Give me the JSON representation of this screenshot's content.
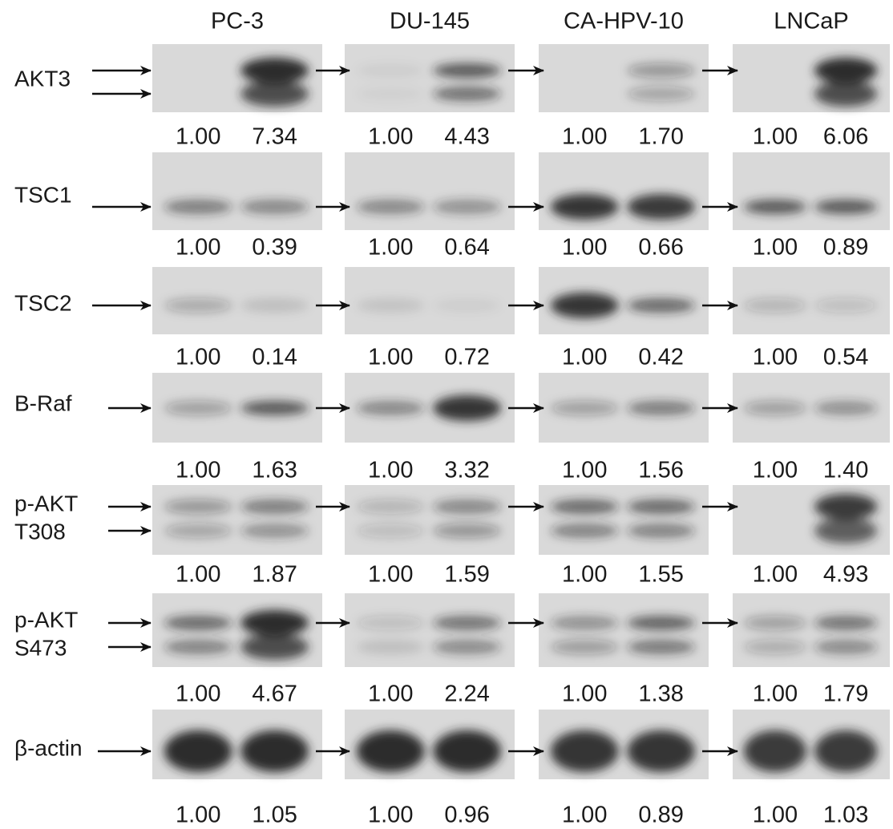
{
  "columns": [
    "PC-3",
    "DU-145",
    "CA-HPV-10",
    "LNCaP"
  ],
  "rows": [
    {
      "label": [
        "AKT3"
      ],
      "values": [
        [
          "1.00",
          "7.34"
        ],
        [
          "1.00",
          "4.43"
        ],
        [
          "1.00",
          "1.70"
        ],
        [
          "1.00",
          "6.06"
        ]
      ]
    },
    {
      "label": [
        "TSC1"
      ],
      "values": [
        [
          "1.00",
          "0.39"
        ],
        [
          "1.00",
          "0.64"
        ],
        [
          "1.00",
          "0.66"
        ],
        [
          "1.00",
          "0.89"
        ]
      ]
    },
    {
      "label": [
        "TSC2"
      ],
      "values": [
        [
          "1.00",
          "0.14"
        ],
        [
          "1.00",
          "0.72"
        ],
        [
          "1.00",
          "0.42"
        ],
        [
          "1.00",
          "0.54"
        ]
      ]
    },
    {
      "label": [
        "B-Raf"
      ],
      "values": [
        [
          "1.00",
          "1.63"
        ],
        [
          "1.00",
          "3.32"
        ],
        [
          "1.00",
          "1.56"
        ],
        [
          "1.00",
          "1.40"
        ]
      ]
    },
    {
      "label": [
        "p-AKT",
        "T308"
      ],
      "values": [
        [
          "1.00",
          "1.87"
        ],
        [
          "1.00",
          "1.59"
        ],
        [
          "1.00",
          "1.55"
        ],
        [
          "1.00",
          "4.93"
        ]
      ]
    },
    {
      "label": [
        "p-AKT",
        "S473"
      ],
      "values": [
        [
          "1.00",
          "4.67"
        ],
        [
          "1.00",
          "2.24"
        ],
        [
          "1.00",
          "1.38"
        ],
        [
          "1.00",
          "1.79"
        ]
      ]
    },
    {
      "label": [
        "β-actin"
      ],
      "values": [
        [
          "1.00",
          "1.05"
        ],
        [
          "1.00",
          "0.96"
        ],
        [
          "1.00",
          "0.89"
        ],
        [
          "1.00",
          "1.03"
        ]
      ]
    }
  ]
}
